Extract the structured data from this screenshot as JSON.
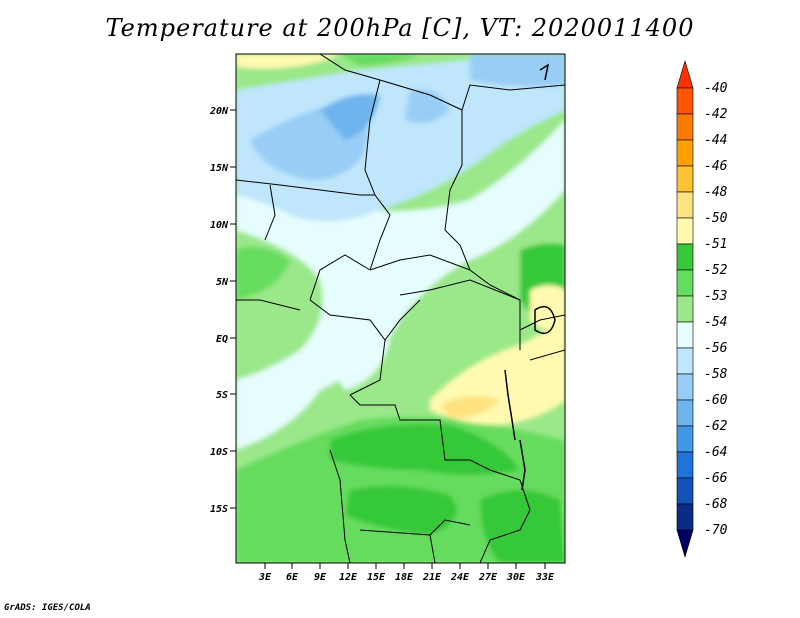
{
  "title": "Temperature at 200hPa [C], VT: 2020011400",
  "credit": "GrADS: IGES/COLA",
  "map": {
    "lat_ticks": [
      "20N",
      "15N",
      "10N",
      "5N",
      "EQ",
      "5S",
      "10S",
      "15S"
    ],
    "lon_ticks": [
      "3E",
      "6E",
      "9E",
      "12E",
      "15E",
      "18E",
      "21E",
      "24E",
      "27E",
      "30E",
      "33E"
    ]
  },
  "colorbar": {
    "levels": [
      "-40",
      "-42",
      "-44",
      "-46",
      "-48",
      "-50",
      "-51",
      "-52",
      "-53",
      "-54",
      "-56",
      "-58",
      "-60",
      "-62",
      "-64",
      "-66",
      "-68",
      "-70"
    ],
    "colors": [
      "#ff3300",
      "#ff5500",
      "#ff7a00",
      "#ffa100",
      "#ffc234",
      "#ffe27f",
      "#fffab0",
      "#36c838",
      "#66dc5e",
      "#9ae889",
      "#e6fdfd",
      "#bfe6fb",
      "#98cef5",
      "#6eb4ee",
      "#4297e8",
      "#1f74d9",
      "#1453b6",
      "#0a2c86",
      "#000060"
    ]
  }
}
